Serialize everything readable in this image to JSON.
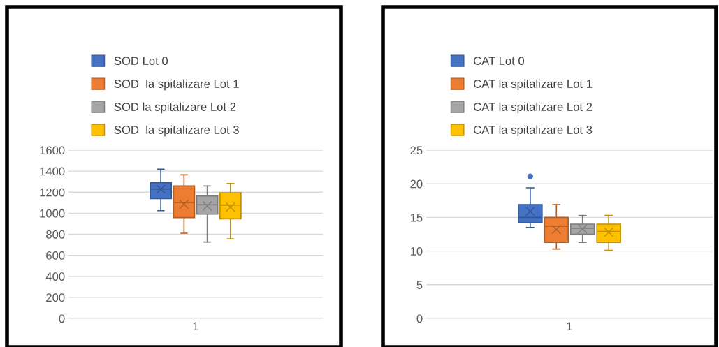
{
  "chart_data": [
    {
      "type": "box",
      "categories": [
        "1"
      ],
      "ylim": [
        0,
        1600
      ],
      "yticks": [
        0,
        200,
        400,
        600,
        800,
        1000,
        1200,
        1400,
        1600
      ],
      "grid": "y",
      "legend": "top",
      "series": [
        {
          "name": "SOD Lot 0",
          "color": "#4472c4",
          "boxes": [
            {
              "low": 1024,
              "q1": 1139,
              "median": 1230,
              "q3": 1290,
              "high": 1418,
              "mean": 1228
            }
          ]
        },
        {
          "name": "SOD  la spitalizare Lot 1",
          "color": "#ed7d31",
          "boxes": [
            {
              "low": 810,
              "q1": 958,
              "median": 1102,
              "q3": 1259,
              "high": 1365,
              "mean": 1086
            }
          ]
        },
        {
          "name": "SOD la spitalizare Lot 2",
          "color": "#a5a5a5",
          "boxes": [
            {
              "low": 726,
              "q1": 991,
              "median": 1080,
              "q3": 1164,
              "high": 1259,
              "mean": 1069
            }
          ]
        },
        {
          "name": "SOD  la spitalizare Lot 3",
          "color": "#ffc000",
          "boxes": [
            {
              "low": 757,
              "q1": 947,
              "median": 1077,
              "q3": 1195,
              "high": 1283,
              "mean": 1058
            }
          ]
        }
      ]
    },
    {
      "type": "box",
      "categories": [
        "1"
      ],
      "ylim": [
        0,
        25
      ],
      "yticks": [
        0,
        5,
        10,
        15,
        20,
        25
      ],
      "grid": "y",
      "legend": "top",
      "series": [
        {
          "name": "CAT Lot 0",
          "color": "#4472c4",
          "boxes": [
            {
              "low": 13.5,
              "q1": 14.2,
              "median": 15.0,
              "q3": 16.9,
              "high": 19.4,
              "mean": 15.9,
              "outliers": [
                21.1
              ]
            }
          ]
        },
        {
          "name": "CAT la spitalizare Lot 1",
          "color": "#ed7d31",
          "boxes": [
            {
              "low": 10.3,
              "q1": 11.3,
              "median": 13.7,
              "q3": 15.0,
              "high": 16.9,
              "mean": 13.2
            }
          ]
        },
        {
          "name": "CAT la spitalizare Lot 2",
          "color": "#a5a5a5",
          "boxes": [
            {
              "low": 11.3,
              "q1": 12.5,
              "median": 13.4,
              "q3": 14.0,
              "high": 15.3,
              "mean": 13.3
            }
          ]
        },
        {
          "name": "CAT la spitalizare Lot 3",
          "color": "#ffc000",
          "boxes": [
            {
              "low": 10.1,
              "q1": 11.3,
              "median": 12.9,
              "q3": 14.0,
              "high": 15.3,
              "mean": 12.8
            }
          ]
        }
      ]
    }
  ]
}
